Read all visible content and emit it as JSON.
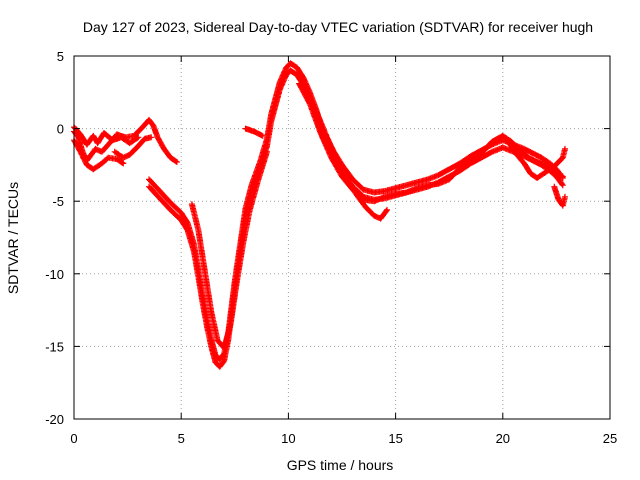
{
  "chart_data": {
    "type": "scatter",
    "title": "Day 127 of 2023, Sidereal Day-to-day VTEC variation (SDTVAR) for receiver hugh",
    "xlabel": "GPS time / hours",
    "ylabel": "SDTVAR / TECUs",
    "xlim": [
      0,
      25
    ],
    "ylim": [
      -20,
      5
    ],
    "xticks": [
      0,
      5,
      10,
      15,
      20,
      25
    ],
    "yticks": [
      -20,
      -15,
      -10,
      -5,
      0,
      5
    ],
    "grid": true,
    "marker": "+",
    "series": [
      {
        "name": "SDTVAR",
        "color": "#ff0000",
        "strands": [
          {
            "offset": 0.0,
            "points": [
              [
                0.0,
                -0.2
              ],
              [
                0.2,
                -0.6
              ],
              [
                0.4,
                -1.6
              ],
              [
                0.6,
                -2.2
              ],
              [
                0.8,
                -1.8
              ],
              [
                1.0,
                -1.4
              ],
              [
                1.3,
                -1.6
              ],
              [
                1.6,
                -1.1
              ],
              [
                2.0,
                -0.4
              ],
              [
                2.4,
                -0.6
              ],
              [
                2.8,
                -0.5
              ],
              [
                3.2,
                0.1
              ],
              [
                3.5,
                0.6
              ],
              [
                3.7,
                0.2
              ],
              [
                3.9,
                -0.6
              ],
              [
                4.2,
                -1.4
              ],
              [
                4.5,
                -2.0
              ],
              [
                4.8,
                -2.3
              ]
            ]
          },
          {
            "offset": 0.0,
            "points": [
              [
                1.9,
                -1.6
              ],
              [
                2.3,
                -2.0
              ],
              [
                2.6,
                -1.8
              ],
              [
                3.0,
                -1.2
              ],
              [
                3.3,
                -0.7
              ],
              [
                3.6,
                -0.6
              ]
            ]
          },
          {
            "offset": 0.0,
            "points": [
              [
                0.0,
                0.1
              ],
              [
                0.3,
                -0.4
              ],
              [
                0.6,
                -1.1
              ],
              [
                0.9,
                -0.5
              ],
              [
                1.1,
                -1.0
              ],
              [
                1.4,
                -0.3
              ],
              [
                1.8,
                -0.8
              ],
              [
                2.2,
                -0.6
              ],
              [
                2.6,
                -1.0
              ],
              [
                3.0,
                -0.6
              ]
            ]
          },
          {
            "offset": 0.0,
            "points": [
              [
                0.0,
                -0.8
              ],
              [
                0.3,
                -1.6
              ],
              [
                0.6,
                -2.5
              ],
              [
                0.9,
                -2.8
              ],
              [
                1.3,
                -2.4
              ],
              [
                1.6,
                -2.0
              ],
              [
                2.0,
                -2.1
              ],
              [
                2.3,
                -2.4
              ]
            ]
          },
          {
            "offset": 0.0,
            "points": [
              [
                3.5,
                -4.0
              ],
              [
                4.0,
                -4.8
              ],
              [
                4.5,
                -5.6
              ],
              [
                5.0,
                -6.3
              ],
              [
                5.3,
                -7.0
              ],
              [
                5.6,
                -8.5
              ],
              [
                5.8,
                -10.2
              ],
              [
                6.0,
                -12.0
              ],
              [
                6.2,
                -13.6
              ],
              [
                6.4,
                -15.0
              ],
              [
                6.6,
                -16.1
              ],
              [
                6.8,
                -16.4
              ],
              [
                7.0,
                -16.0
              ],
              [
                7.2,
                -14.5
              ],
              [
                7.5,
                -11.0
              ],
              [
                7.8,
                -8.0
              ],
              [
                8.0,
                -6.0
              ],
              [
                8.3,
                -4.3
              ],
              [
                8.7,
                -2.7
              ],
              [
                9.0,
                -1.2
              ],
              [
                9.2,
                0.5
              ],
              [
                9.4,
                1.6
              ],
              [
                9.6,
                2.7
              ],
              [
                9.9,
                3.7
              ],
              [
                10.1,
                4.0
              ],
              [
                10.4,
                3.7
              ],
              [
                10.7,
                3.0
              ],
              [
                11.0,
                2.0
              ],
              [
                11.3,
                0.8
              ],
              [
                11.6,
                -0.6
              ],
              [
                12.0,
                -1.8
              ],
              [
                12.5,
                -3.0
              ],
              [
                13.0,
                -4.0
              ],
              [
                13.5,
                -4.7
              ],
              [
                14.0,
                -4.9
              ],
              [
                14.5,
                -4.8
              ],
              [
                15.0,
                -4.6
              ],
              [
                15.5,
                -4.4
              ],
              [
                16.0,
                -4.2
              ],
              [
                16.5,
                -4.0
              ],
              [
                17.0,
                -3.7
              ],
              [
                17.5,
                -3.3
              ],
              [
                18.0,
                -2.9
              ],
              [
                18.5,
                -2.4
              ],
              [
                19.0,
                -2.0
              ],
              [
                19.5,
                -1.6
              ],
              [
                20.0,
                -1.3
              ],
              [
                20.5,
                -1.6
              ],
              [
                21.0,
                -1.9
              ],
              [
                21.4,
                -2.2
              ],
              [
                21.8,
                -2.5
              ],
              [
                22.2,
                -2.9
              ],
              [
                22.5,
                -3.3
              ],
              [
                22.8,
                -3.9
              ]
            ]
          },
          {
            "offset": 0.5,
            "points": [
              [
                3.5,
                -4.0
              ],
              [
                4.0,
                -4.8
              ],
              [
                4.5,
                -5.6
              ],
              [
                5.0,
                -6.3
              ],
              [
                5.3,
                -7.0
              ],
              [
                5.6,
                -8.5
              ],
              [
                5.8,
                -10.2
              ],
              [
                6.0,
                -12.0
              ],
              [
                6.2,
                -13.6
              ],
              [
                6.4,
                -15.0
              ],
              [
                6.6,
                -16.1
              ],
              [
                6.8,
                -16.4
              ],
              [
                7.0,
                -16.0
              ],
              [
                7.2,
                -14.5
              ],
              [
                7.5,
                -11.0
              ],
              [
                7.8,
                -8.0
              ],
              [
                8.0,
                -6.0
              ],
              [
                8.3,
                -4.3
              ],
              [
                8.7,
                -2.7
              ],
              [
                9.0,
                -1.2
              ],
              [
                9.2,
                0.5
              ],
              [
                9.4,
                1.6
              ],
              [
                9.6,
                2.7
              ],
              [
                9.9,
                3.7
              ],
              [
                10.1,
                4.0
              ],
              [
                10.4,
                3.7
              ],
              [
                10.7,
                3.0
              ],
              [
                11.0,
                2.0
              ],
              [
                11.3,
                0.8
              ],
              [
                11.6,
                -0.6
              ],
              [
                12.0,
                -1.8
              ],
              [
                12.5,
                -3.0
              ],
              [
                13.0,
                -4.0
              ],
              [
                13.5,
                -4.7
              ],
              [
                14.0,
                -4.9
              ],
              [
                14.5,
                -4.8
              ],
              [
                15.0,
                -4.6
              ],
              [
                15.5,
                -4.4
              ],
              [
                16.0,
                -4.2
              ],
              [
                16.5,
                -4.0
              ],
              [
                17.0,
                -3.7
              ],
              [
                17.5,
                -3.3
              ],
              [
                18.0,
                -2.9
              ],
              [
                18.5,
                -2.4
              ],
              [
                19.0,
                -2.0
              ],
              [
                19.5,
                -1.6
              ],
              [
                20.0,
                -1.3
              ],
              [
                20.5,
                -1.6
              ],
              [
                21.0,
                -1.9
              ],
              [
                21.4,
                -2.2
              ],
              [
                21.8,
                -2.5
              ],
              [
                22.2,
                -2.9
              ],
              [
                22.5,
                -3.3
              ],
              [
                22.8,
                -3.9
              ]
            ]
          },
          {
            "offset": -0.5,
            "points": [
              [
                10.5,
                3.6
              ],
              [
                11.0,
                2.2
              ],
              [
                11.5,
                0.2
              ],
              [
                12.0,
                -1.5
              ],
              [
                12.5,
                -2.8
              ],
              [
                13.0,
                -3.7
              ],
              [
                13.5,
                -4.4
              ],
              [
                14.0,
                -4.5
              ],
              [
                14.5,
                -4.2
              ],
              [
                15.0,
                -4.0
              ],
              [
                15.5,
                -3.9
              ],
              [
                16.0,
                -3.6
              ],
              [
                16.5,
                -3.4
              ],
              [
                17.0,
                -3.3
              ],
              [
                17.5,
                -3.0
              ],
              [
                18.0,
                -2.2
              ],
              [
                18.5,
                -1.7
              ],
              [
                19.0,
                -1.2
              ],
              [
                19.5,
                -0.4
              ],
              [
                20.0,
                0.0
              ],
              [
                20.4,
                -0.4
              ],
              [
                20.8,
                -1.0
              ],
              [
                21.2,
                -1.5
              ],
              [
                21.6,
                -1.8
              ],
              [
                22.0,
                -2.0
              ],
              [
                22.4,
                -2.4
              ],
              [
                22.8,
                -2.8
              ]
            ]
          },
          {
            "offset": 0.0,
            "points": [
              [
                5.5,
                -5.2
              ],
              [
                5.8,
                -7.0
              ],
              [
                6.1,
                -9.8
              ],
              [
                6.4,
                -12.6
              ],
              [
                6.7,
                -14.6
              ],
              [
                7.0,
                -15.1
              ],
              [
                7.3,
                -13.5
              ],
              [
                7.6,
                -10.5
              ],
              [
                7.9,
                -7.8
              ],
              [
                8.2,
                -5.6
              ],
              [
                8.6,
                -3.5
              ],
              [
                9.0,
                -1.6
              ]
            ]
          },
          {
            "offset": 0.0,
            "points": [
              [
                8.0,
                0.0
              ],
              [
                8.4,
                -0.2
              ],
              [
                8.8,
                -0.5
              ]
            ]
          },
          {
            "offset": 0.0,
            "points": [
              [
                10.8,
                2.6
              ],
              [
                11.3,
                1.2
              ],
              [
                11.8,
                -0.6
              ],
              [
                12.3,
                -2.2
              ],
              [
                12.7,
                -3.5
              ],
              [
                13.2,
                -4.6
              ],
              [
                13.6,
                -5.4
              ],
              [
                14.0,
                -6.0
              ],
              [
                14.3,
                -6.2
              ],
              [
                14.6,
                -5.6
              ]
            ]
          },
          {
            "offset": 0.0,
            "points": [
              [
                20.3,
                -1.0
              ],
              [
                20.6,
                -1.7
              ],
              [
                21.0,
                -2.4
              ],
              [
                21.3,
                -3.1
              ],
              [
                21.6,
                -3.4
              ],
              [
                22.0,
                -3.0
              ],
              [
                22.4,
                -2.6
              ],
              [
                22.8,
                -2.0
              ],
              [
                22.9,
                -1.4
              ]
            ]
          },
          {
            "offset": 0.0,
            "points": [
              [
                22.4,
                -4.0
              ],
              [
                22.6,
                -4.9
              ],
              [
                22.8,
                -5.3
              ],
              [
                22.9,
                -4.7
              ]
            ]
          }
        ]
      }
    ]
  }
}
